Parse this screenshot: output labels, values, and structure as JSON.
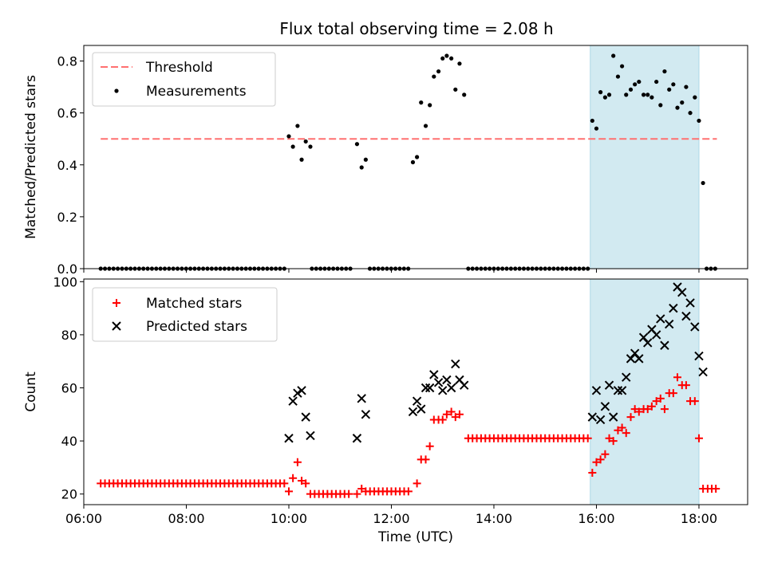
{
  "figure": {
    "title": "Flux total observing time = 2.08 h"
  },
  "chart_data": [
    {
      "type": "scatter",
      "name": "top-panel",
      "ylabel": "Matched/Predicted stars",
      "xlabel": "",
      "xlim": [
        6.0,
        18.95
      ],
      "ylim": [
        0,
        0.86
      ],
      "yticks": [
        0.0,
        0.2,
        0.4,
        0.6,
        0.8
      ],
      "ytick_labels": [
        "0.0",
        "0.2",
        "0.4",
        "0.6",
        "0.8"
      ],
      "xticks": [
        6,
        8,
        10,
        12,
        14,
        16,
        18
      ],
      "grid": false,
      "legend_position": "top-left",
      "highlight_span": {
        "x0": 15.88,
        "x1": 18.0,
        "color": "#add8e6"
      },
      "threshold": {
        "label": "Threshold",
        "y": 0.5,
        "x0": 6.33,
        "x1": 18.35,
        "color": "#ff7070"
      },
      "measurements": {
        "label": "Measurements",
        "color": "#000000",
        "segments": [
          {
            "from": 6.33,
            "to": 9.95,
            "step": 0.0833,
            "y": 0.0
          },
          {
            "from": 10.45,
            "to": 11.25,
            "step": 0.0833,
            "y": 0.0
          },
          {
            "from": 11.58,
            "to": 12.35,
            "step": 0.0833,
            "y": 0.0
          },
          {
            "from": 13.5,
            "to": 15.85,
            "step": 0.0833,
            "y": 0.0
          },
          {
            "from": 18.15,
            "to": 18.35,
            "step": 0.0833,
            "y": 0.0
          }
        ],
        "points": [
          [
            10.0,
            0.51
          ],
          [
            10.08,
            0.47
          ],
          [
            10.17,
            0.55
          ],
          [
            10.25,
            0.42
          ],
          [
            10.33,
            0.49
          ],
          [
            10.42,
            0.47
          ],
          [
            11.33,
            0.48
          ],
          [
            11.42,
            0.39
          ],
          [
            11.5,
            0.42
          ],
          [
            12.42,
            0.41
          ],
          [
            12.5,
            0.43
          ],
          [
            12.58,
            0.64
          ],
          [
            12.67,
            0.55
          ],
          [
            12.75,
            0.63
          ],
          [
            12.83,
            0.74
          ],
          [
            12.92,
            0.76
          ],
          [
            13.0,
            0.81
          ],
          [
            13.08,
            0.82
          ],
          [
            13.17,
            0.81
          ],
          [
            13.25,
            0.69
          ],
          [
            13.33,
            0.79
          ],
          [
            13.42,
            0.67
          ],
          [
            15.92,
            0.57
          ],
          [
            16.0,
            0.54
          ],
          [
            16.08,
            0.68
          ],
          [
            16.17,
            0.66
          ],
          [
            16.25,
            0.67
          ],
          [
            16.33,
            0.82
          ],
          [
            16.42,
            0.74
          ],
          [
            16.5,
            0.78
          ],
          [
            16.58,
            0.67
          ],
          [
            16.67,
            0.69
          ],
          [
            16.75,
            0.71
          ],
          [
            16.83,
            0.72
          ],
          [
            16.92,
            0.67
          ],
          [
            17.0,
            0.67
          ],
          [
            17.08,
            0.66
          ],
          [
            17.17,
            0.72
          ],
          [
            17.25,
            0.63
          ],
          [
            17.33,
            0.76
          ],
          [
            17.42,
            0.69
          ],
          [
            17.5,
            0.71
          ],
          [
            17.58,
            0.62
          ],
          [
            17.67,
            0.64
          ],
          [
            17.75,
            0.7
          ],
          [
            17.83,
            0.6
          ],
          [
            17.92,
            0.66
          ],
          [
            18.0,
            0.57
          ],
          [
            18.08,
            0.33
          ]
        ]
      }
    },
    {
      "type": "scatter",
      "name": "bottom-panel",
      "ylabel": "Count",
      "xlabel": "Time (UTC)",
      "xlim": [
        6.0,
        18.95
      ],
      "ylim": [
        16,
        101
      ],
      "yticks": [
        20,
        40,
        60,
        80,
        100
      ],
      "ytick_labels": [
        "20",
        "40",
        "60",
        "80",
        "100"
      ],
      "xticks": [
        6,
        8,
        10,
        12,
        14,
        16,
        18
      ],
      "xtick_labels": [
        "06:00",
        "08:00",
        "10:00",
        "12:00",
        "14:00",
        "16:00",
        "18:00"
      ],
      "grid": false,
      "legend_position": "top-left",
      "highlight_span": {
        "x0": 15.88,
        "x1": 18.0,
        "color": "#add8e6"
      },
      "matched": {
        "label": "Matched stars",
        "color": "#ff0000",
        "segments": [
          {
            "from": 6.33,
            "to": 9.92,
            "step": 0.0833,
            "y": 24
          },
          {
            "from": 10.42,
            "to": 11.25,
            "step": 0.0833,
            "y": 20
          },
          {
            "from": 11.5,
            "to": 12.4,
            "step": 0.0833,
            "y": 21
          },
          {
            "from": 13.5,
            "to": 15.85,
            "step": 0.0833,
            "y": 41
          }
        ],
        "points": [
          [
            10.0,
            21
          ],
          [
            10.08,
            26
          ],
          [
            10.17,
            32
          ],
          [
            10.25,
            25
          ],
          [
            10.33,
            24
          ],
          [
            11.33,
            20
          ],
          [
            11.42,
            22
          ],
          [
            12.5,
            24
          ],
          [
            12.58,
            33
          ],
          [
            12.67,
            33
          ],
          [
            12.75,
            38
          ],
          [
            12.83,
            48
          ],
          [
            12.92,
            48
          ],
          [
            13.0,
            48
          ],
          [
            13.08,
            50
          ],
          [
            13.17,
            51
          ],
          [
            13.25,
            49
          ],
          [
            13.33,
            50
          ],
          [
            15.92,
            28
          ],
          [
            16.0,
            32
          ],
          [
            16.08,
            33
          ],
          [
            16.17,
            35
          ],
          [
            16.25,
            41
          ],
          [
            16.33,
            40
          ],
          [
            16.42,
            44
          ],
          [
            16.5,
            45
          ],
          [
            16.58,
            43
          ],
          [
            16.67,
            49
          ],
          [
            16.75,
            52
          ],
          [
            16.83,
            51
          ],
          [
            16.92,
            52
          ],
          [
            17.0,
            52
          ],
          [
            17.08,
            53
          ],
          [
            17.17,
            55
          ],
          [
            17.25,
            56
          ],
          [
            17.33,
            52
          ],
          [
            17.42,
            58
          ],
          [
            17.5,
            58
          ],
          [
            17.58,
            64
          ],
          [
            17.67,
            61
          ],
          [
            17.75,
            61
          ],
          [
            17.83,
            55
          ],
          [
            17.92,
            55
          ],
          [
            18.0,
            41
          ],
          [
            18.08,
            22
          ],
          [
            18.17,
            22
          ],
          [
            18.25,
            22
          ],
          [
            18.33,
            22
          ]
        ]
      },
      "predicted": {
        "label": "Predicted stars",
        "color": "#000000",
        "points": [
          [
            10.0,
            41
          ],
          [
            10.08,
            55
          ],
          [
            10.17,
            58
          ],
          [
            10.25,
            59
          ],
          [
            10.33,
            49
          ],
          [
            10.42,
            42
          ],
          [
            11.33,
            41
          ],
          [
            11.42,
            56
          ],
          [
            11.5,
            50
          ],
          [
            12.42,
            51
          ],
          [
            12.5,
            55
          ],
          [
            12.58,
            52
          ],
          [
            12.67,
            60
          ],
          [
            12.75,
            60
          ],
          [
            12.83,
            65
          ],
          [
            12.92,
            62
          ],
          [
            13.0,
            59
          ],
          [
            13.08,
            63
          ],
          [
            13.17,
            60
          ],
          [
            13.25,
            69
          ],
          [
            13.33,
            63
          ],
          [
            13.42,
            61
          ],
          [
            15.92,
            49
          ],
          [
            16.0,
            59
          ],
          [
            16.08,
            48
          ],
          [
            16.17,
            53
          ],
          [
            16.25,
            61
          ],
          [
            16.33,
            49
          ],
          [
            16.42,
            59
          ],
          [
            16.5,
            59
          ],
          [
            16.58,
            64
          ],
          [
            16.67,
            71
          ],
          [
            16.75,
            73
          ],
          [
            16.83,
            71
          ],
          [
            16.92,
            79
          ],
          [
            17.0,
            77
          ],
          [
            17.08,
            82
          ],
          [
            17.17,
            80
          ],
          [
            17.25,
            86
          ],
          [
            17.33,
            76
          ],
          [
            17.42,
            84
          ],
          [
            17.5,
            90
          ],
          [
            17.58,
            98
          ],
          [
            17.67,
            96
          ],
          [
            17.75,
            87
          ],
          [
            17.83,
            92
          ],
          [
            17.92,
            83
          ],
          [
            18.0,
            72
          ],
          [
            18.08,
            66
          ]
        ]
      }
    }
  ]
}
